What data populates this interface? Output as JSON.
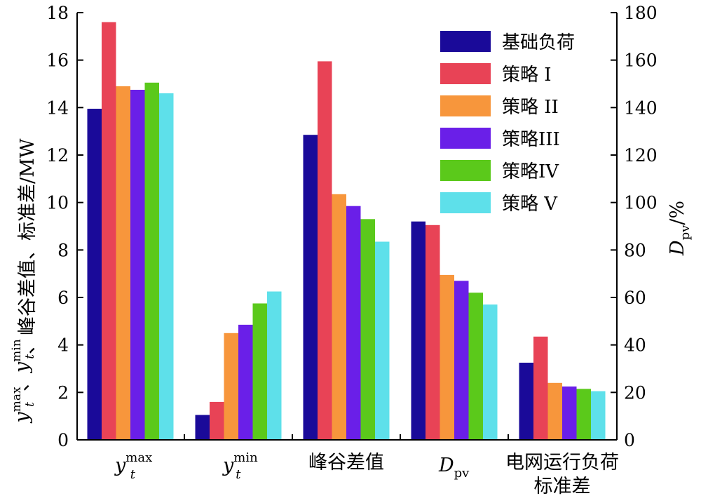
{
  "chart_data": {
    "type": "bar",
    "categories": [
      "y_t^max",
      "y_t^min",
      "峰谷差值",
      "D_pv",
      "电网运行负荷标准差"
    ],
    "category_labels": [
      {
        "base": "y",
        "sub": "t",
        "sup": "max"
      },
      {
        "base": "y",
        "sub": "t",
        "sup": "min"
      },
      {
        "text": "峰谷差值"
      },
      {
        "base": "D",
        "sub": "pv"
      },
      {
        "line1": "电网运行负荷",
        "line2": "标准差"
      }
    ],
    "series": [
      {
        "name": "基础负荷",
        "color": "#1a0a99",
        "values": [
          13.95,
          1.05,
          12.85,
          9.2,
          3.25
        ]
      },
      {
        "name": "策略 I",
        "color": "#e84356",
        "values": [
          17.6,
          1.6,
          15.95,
          9.05,
          4.35
        ]
      },
      {
        "name": "策略 II",
        "color": "#f7963c",
        "values": [
          14.9,
          4.5,
          10.35,
          6.95,
          2.4
        ]
      },
      {
        "name": "策略III",
        "color": "#6a1fe8",
        "values": [
          14.75,
          4.85,
          9.85,
          6.7,
          2.25
        ]
      },
      {
        "name": "策略IV",
        "color": "#5bc91b",
        "values": [
          15.05,
          5.75,
          9.3,
          6.2,
          2.15
        ]
      },
      {
        "name": "策略 V",
        "color": "#5ee0ea",
        "values": [
          14.6,
          6.25,
          8.35,
          5.7,
          2.05
        ]
      }
    ],
    "left_axis": {
      "range": [
        0,
        18
      ],
      "ticks": [
        "0",
        "2",
        "4",
        "6",
        "8",
        "10",
        "12",
        "14",
        "16",
        "18"
      ],
      "label_suffix": "、峰谷差值、标准差/MW"
    },
    "right_axis": {
      "range": [
        0,
        180
      ],
      "ticks": [
        "0",
        "20",
        "40",
        "60",
        "80",
        "100",
        "120",
        "140",
        "160",
        "180"
      ],
      "label_main": "D",
      "label_sub": "pv",
      "label_suffix": "/%"
    },
    "right_axis_category": "D_pv",
    "grid": false,
    "legend_position": "top-right"
  }
}
